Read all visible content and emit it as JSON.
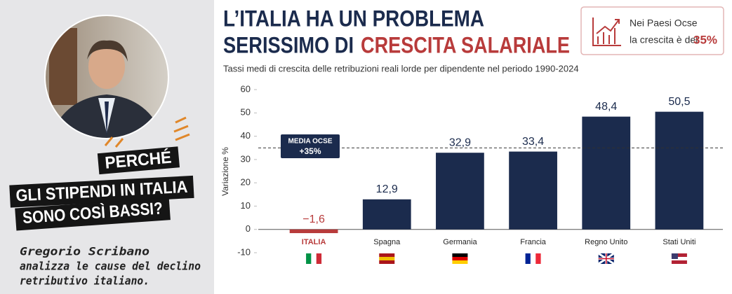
{
  "left_panel": {
    "headline": [
      "PERCHÉ",
      "GLI STIPENDI IN ITALIA",
      "SONO COSÌ BASSI?"
    ],
    "caption": [
      "Gregorio Scribano",
      "analizza le cause del declino",
      "retributivo italiano."
    ]
  },
  "chart_data": {
    "type": "bar",
    "title_line1": "L’ITALIA HA UN PROBLEMA",
    "title_line2": "SERISSIMO DI",
    "title_highlight": "CRESCITA SALARIALE",
    "subtitle": "Tassi medi di crescita delle retribuzioni reali lorde per dipendente nel periodo 1990-2024",
    "y_label": "Variazione %",
    "categories": [
      "ITALIA",
      "Spagna",
      "Germania",
      "Francia",
      "Regno Unito",
      "Stati Uniti"
    ],
    "values": [
      -1.6,
      12.9,
      32.9,
      33.4,
      48.4,
      50.5
    ],
    "value_labels": [
      "−1,6",
      "12,9",
      "32,9",
      "33,4",
      "48,4",
      "50,5"
    ],
    "colors": [
      "#b83b3b",
      "#1b2b4d",
      "#1b2b4d",
      "#1b2b4d",
      "#1b2b4d",
      "#1b2b4d"
    ],
    "ylim": [
      -10,
      60
    ],
    "yticks": [
      -10,
      0,
      10,
      20,
      30,
      40,
      50,
      60
    ],
    "reference_line": {
      "value": 35,
      "label": [
        "MEDIA OCSE",
        "+35%"
      ]
    },
    "callout": {
      "text": [
        "Nei Paesi Ocse",
        "la crescita è del"
      ],
      "highlight": "35%"
    }
  }
}
